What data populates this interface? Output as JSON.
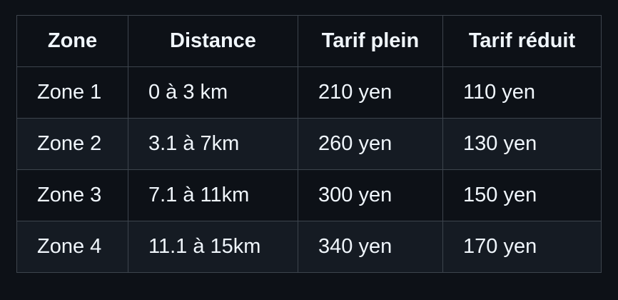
{
  "table": {
    "headers": [
      "Zone",
      "Distance",
      "Tarif plein",
      "Tarif réduit"
    ],
    "rows": [
      [
        "Zone 1",
        "0 à 3 km",
        "210 yen",
        "110 yen"
      ],
      [
        "Zone 2",
        "3.1 à 7km",
        "260 yen",
        "130 yen"
      ],
      [
        "Zone 3",
        "7.1 à 11km",
        "300 yen",
        "150 yen"
      ],
      [
        "Zone 4",
        "11.1 à 15km",
        "340 yen",
        "170 yen"
      ]
    ]
  },
  "colors": {
    "background": "#0d1117",
    "row_alt": "#151b23",
    "border": "#3d444d",
    "text": "#f0f6fc"
  }
}
